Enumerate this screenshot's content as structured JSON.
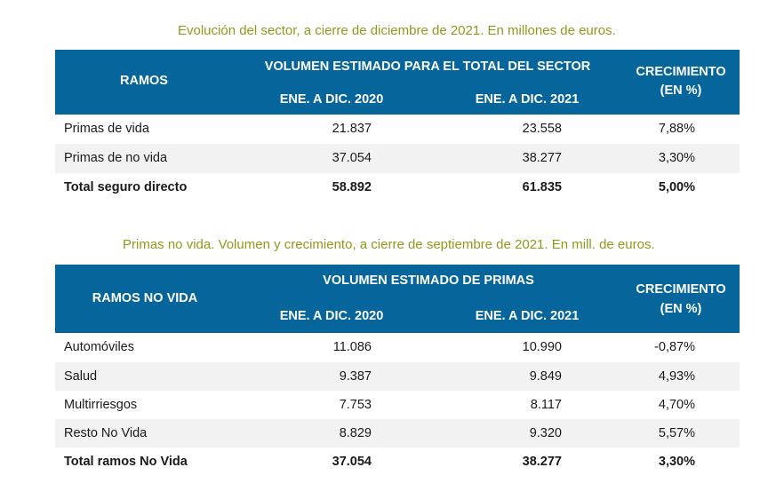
{
  "table1": {
    "caption": "Evolución del sector, a cierre de diciembre de 2021. En millones de euros.",
    "headers": {
      "ramos": "RAMOS",
      "volume_group": "VOLUMEN ESTIMADO PARA EL TOTAL DEL SECTOR",
      "period_2020": "ENE. A DIC. 2020",
      "period_2021": "ENE. A DIC. 2021",
      "growth_line1": "CRECIMIENTO",
      "growth_line2": "(EN %)"
    },
    "rows": [
      {
        "label": "Primas de vida",
        "v2020": "21.837",
        "v2021": "23.558",
        "growth": "7,88%"
      },
      {
        "label": "Primas de no vida",
        "v2020": "37.054",
        "v2021": "38.277",
        "growth": "3,30%"
      },
      {
        "label": "Total seguro directo",
        "v2020": "58.892",
        "v2021": "61.835",
        "growth": "5,00%"
      }
    ]
  },
  "table2": {
    "caption": "Primas no vida. Volumen y crecimiento, a cierre de septiembre de 2021. En mill. de euros.",
    "headers": {
      "ramos": "RAMOS NO VIDA",
      "volume_group": "VOLUMEN ESTIMADO DE PRIMAS",
      "period_2020": "ENE. A DIC. 2020",
      "period_2021": "ENE. A DIC. 2021",
      "growth_line1": "CRECIMIENTO",
      "growth_line2": "(EN %)"
    },
    "rows": [
      {
        "label": "Automóviles",
        "v2020": "11.086",
        "v2021": "10.990",
        "growth": "-0,87%"
      },
      {
        "label": "Salud",
        "v2020": "9.387",
        "v2021": "9.849",
        "growth": "4,93%"
      },
      {
        "label": "Multirriesgos",
        "v2020": "7.753",
        "v2021": "8.117",
        "growth": "4,70%"
      },
      {
        "label": "Resto No Vida",
        "v2020": "8.829",
        "v2021": "9.320",
        "growth": "5,57%"
      },
      {
        "label": "Total ramos No Vida",
        "v2020": "37.054",
        "v2021": "38.277",
        "growth": "3,30%"
      }
    ]
  },
  "colors": {
    "header_bg": "#06659a",
    "caption": "#8f9a1c",
    "alt_row": "#f2f2f2"
  }
}
